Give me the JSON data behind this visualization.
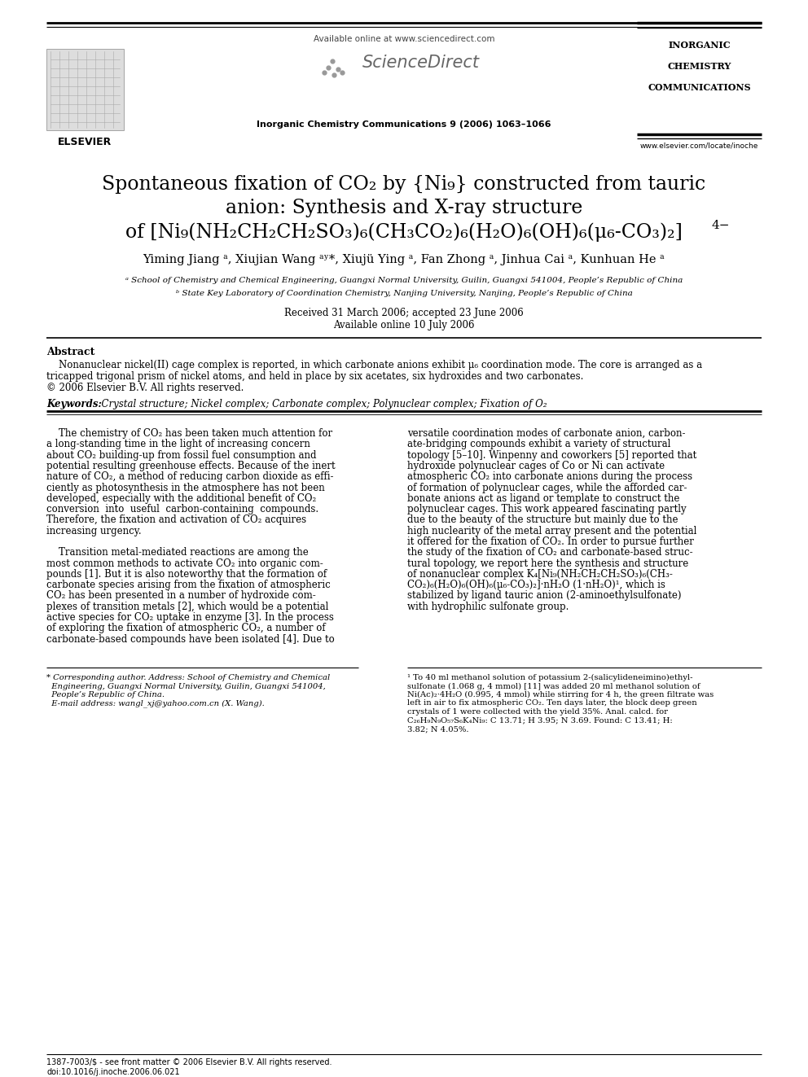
{
  "page_bg": "#ffffff",
  "fig_w": 9.92,
  "fig_h": 13.23,
  "dpi": 100,
  "header": {
    "available_online": "Available online at www.sciencedirect.com",
    "journal_line": "Inorganic Chemistry Communications 9 (2006) 1063–1066",
    "sciencedirect_text": "ScienceDirect",
    "elsevier_text": "ELSEVIER",
    "icc_line1": "INORGANIC",
    "icc_line2": "CHEMISTRY",
    "icc_line3": "COMMUNICATIONS",
    "website": "www.elsevier.com/locate/inoche"
  },
  "title_line1": "Spontaneous fixation of CO₂ by {Ni₉} constructed from tauric",
  "title_line2": "anion: Synthesis and X-ray structure",
  "title_line3_pre": "of [Ni₉(NH₂CH₂CH₂SO₃)₆(CH₃CO₂)₆(H₂O)₆(OH)₆(μ₆-CO₃)₂]",
  "title_charge": "4−",
  "authors": "Yiming Jiang ᵃ, Xiujian Wang ᵃʸ*, Xiujü Ying ᵃ, Fan Zhong ᵃ, Jinhua Cai ᵃ, Kunhuan He ᵃ",
  "affil_a": "ᵃ School of Chemistry and Chemical Engineering, Guangxi Normal University, Guilin, Guangxi 541004, People’s Republic of China",
  "affil_b": "ᵇ State Key Laboratory of Coordination Chemistry, Nanjing University, Nanjing, People’s Republic of China",
  "received": "Received 31 March 2006; accepted 23 June 2006",
  "available_online2": "Available online 10 July 2006",
  "abstract_label": "Abstract",
  "abstract_line1": "    Nonanuclear nickel(II) cage complex is reported, in which carbonate anions exhibit μ₆ coordination mode. The core is arranged as a",
  "abstract_line2": "tricapped trigonal prism of nickel atoms, and held in place by six acetates, six hydroxides and two carbonates.",
  "abstract_copyright": "© 2006 Elsevier B.V. All rights reserved.",
  "keywords_label": "Keywords:",
  "keywords_text": "  Crystal structure; Nickel complex; Carbonate complex; Polynuclear complex; Fixation of O₂",
  "left_col_lines": [
    "    The chemistry of CO₂ has been taken much attention for",
    "a long-standing time in the light of increasing concern",
    "about CO₂ building-up from fossil fuel consumption and",
    "potential resulting greenhouse effects. Because of the inert",
    "nature of CO₂, a method of reducing carbon dioxide as effi-",
    "ciently as photosynthesis in the atmosphere has not been",
    "developed, especially with the additional benefit of CO₂",
    "conversion  into  useful  carbon-containing  compounds.",
    "Therefore, the fixation and activation of CO₂ acquires",
    "increasing urgency.",
    "",
    "    Transition metal-mediated reactions are among the",
    "most common methods to activate CO₂ into organic com-",
    "pounds [1]. But it is also noteworthy that the formation of",
    "carbonate species arising from the fixation of atmospheric",
    "CO₂ has been presented in a number of hydroxide com-",
    "plexes of transition metals [2], which would be a potential",
    "active species for CO₂ uptake in enzyme [3]. In the process",
    "of exploring the fixation of atmospheric CO₂, a number of",
    "carbonate-based compounds have been isolated [4]. Due to"
  ],
  "right_col_lines": [
    "versatile coordination modes of carbonate anion, carbon-",
    "ate-bridging compounds exhibit a variety of structural",
    "topology [5–10]. Winpenny and coworkers [5] reported that",
    "hydroxide polynuclear cages of Co or Ni can activate",
    "atmospheric CO₂ into carbonate anions during the process",
    "of formation of polynuclear cages, while the afforded car-",
    "bonate anions act as ligand or template to construct the",
    "polynuclear cages. This work appeared fascinating partly",
    "due to the beauty of the structure but mainly due to the",
    "high nuclearity of the metal array present and the potential",
    "it offered for the fixation of CO₂. In order to pursue further",
    "the study of the fixation of CO₂ and carbonate-based struc-",
    "tural topology, we report here the synthesis and structure",
    "of nonanuclear complex K₄[Ni₉(NH₂CH₂CH₂SO₃)₆(CH₃-",
    "CO₂)₆(H₂O)₆(OH)₆(μ₆-CO₃)₂]·nH₂O (1·nH₂O)¹, which is",
    "stabilized by ligand tauric anion (2-aminoethylsulfonate)",
    "with hydrophilic sulfonate group."
  ],
  "footnote_star_lines": [
    "* Corresponding author. Address: School of Chemistry and Chemical",
    "  Engineering, Guangxi Normal University, Guilin, Guangxi 541004,",
    "  People’s Republic of China.",
    "  E-mail address: wangl_xj@yahoo.com.cn (X. Wang)."
  ],
  "footnote1_lines": [
    "¹ To 40 ml methanol solution of potassium 2-(salicylideneimino)ethyl-",
    "sulfonate (1.068 g, 4 mmol) [11] was added 20 ml methanol solution of",
    "Ni(Ac)₂·4H₂O (0.995, 4 mmol) while stirring for 4 h, the green filtrate was",
    "left in air to fix atmospheric CO₂. Ten days later, the block deep green",
    "crystals of 1 were collected with the yield 35%. Anal. calcd. for",
    "C₂₆H₉N₉O₅₇S₆K₄Ni₉: C 13.71; H 3.95; N 3.69. Found: C 13.41; H:",
    "3.82; N 4.05%."
  ],
  "bottom_line1": "1387-7003/$ - see front matter © 2006 Elsevier B.V. All rights reserved.",
  "bottom_line2": "doi:10.1016/j.inoche.2006.06.021"
}
